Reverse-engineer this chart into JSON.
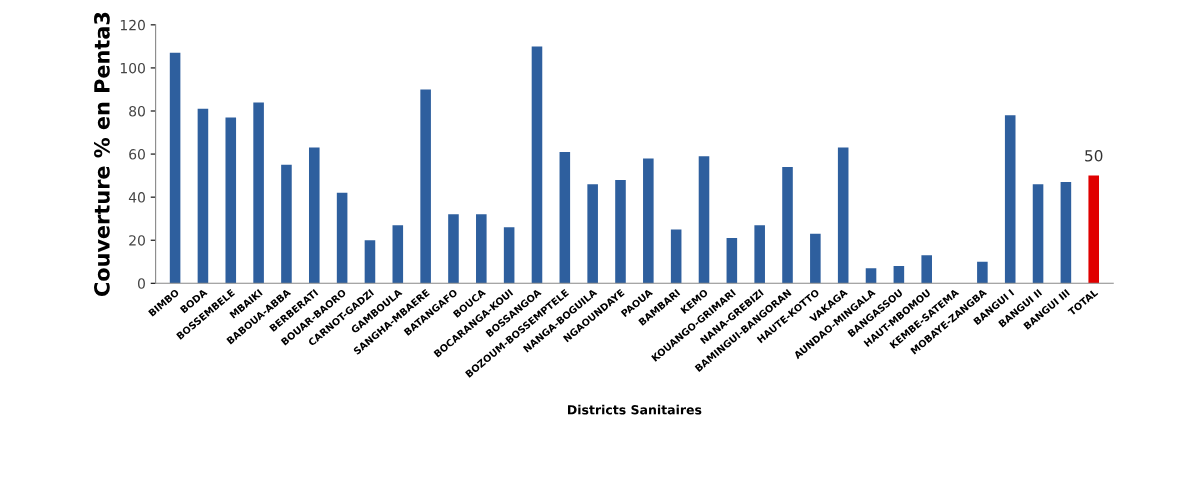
{
  "chart_data": {
    "type": "bar",
    "ylabel": "Couverture % en Penta3",
    "xlabel": "Districts Sanitaires",
    "categories": [
      "BIMBO",
      "BODA",
      "BOSSEMBELE",
      "MBAIKI",
      "BABOUA-ABBA",
      "BERBERATI",
      "BOUAR-BAORO",
      "CARNOT-GADZI",
      "GAMBOULA",
      "SANGHA-MBAERE",
      "BATANGAFO",
      "BOUCA",
      "BOCARANGA-KOUI",
      "BOSSANGOA",
      "BOZOUM-BOSSEMPTELE",
      "NANGA-BOGUILA",
      "NGAOUNDAYE",
      "PAOUA",
      "BAMBARI",
      "KEMO",
      "KOUANGO-GRIMARI",
      "NANA-GREBIZI",
      "BAMINGUI-BANGORAN",
      "HAUTE-KOTTO",
      "VAKAGA",
      "AUNDAO-MINGALA",
      "BANGASSOU",
      "HAUT-MBOMOU",
      "KEMBE-SATEMA",
      "MOBAYE-ZANGBA",
      "BANGUI I",
      "BANGUI II",
      "BANGUI III",
      "TOTAL"
    ],
    "values": [
      107,
      81,
      77,
      84,
      55,
      63,
      42,
      20,
      27,
      90,
      32,
      32,
      26,
      110,
      61,
      46,
      48,
      58,
      25,
      59,
      21,
      27,
      54,
      23,
      63,
      7,
      8,
      13,
      null,
      10,
      78,
      46,
      47,
      50
    ],
    "colors": [
      "#2e5f9e",
      "#2e5f9e",
      "#2e5f9e",
      "#2e5f9e",
      "#2e5f9e",
      "#2e5f9e",
      "#2e5f9e",
      "#2e5f9e",
      "#2e5f9e",
      "#2e5f9e",
      "#2e5f9e",
      "#2e5f9e",
      "#2e5f9e",
      "#2e5f9e",
      "#2e5f9e",
      "#2e5f9e",
      "#2e5f9e",
      "#2e5f9e",
      "#2e5f9e",
      "#2e5f9e",
      "#2e5f9e",
      "#2e5f9e",
      "#2e5f9e",
      "#2e5f9e",
      "#2e5f9e",
      "#2e5f9e",
      "#2e5f9e",
      "#2e5f9e",
      "#2e5f9e",
      "#2e5f9e",
      "#2e5f9e",
      "#2e5f9e",
      "#2e5f9e",
      "#e00000"
    ],
    "value_labels": [
      null,
      null,
      null,
      null,
      null,
      null,
      null,
      null,
      null,
      null,
      null,
      null,
      null,
      null,
      null,
      null,
      null,
      null,
      null,
      null,
      null,
      null,
      null,
      null,
      null,
      null,
      null,
      null,
      null,
      null,
      null,
      null,
      null,
      "50"
    ],
    "ylim": [
      0,
      120
    ],
    "yticks": [
      0,
      20,
      40,
      60,
      80,
      100,
      120
    ],
    "grid": false,
    "legend": false
  }
}
